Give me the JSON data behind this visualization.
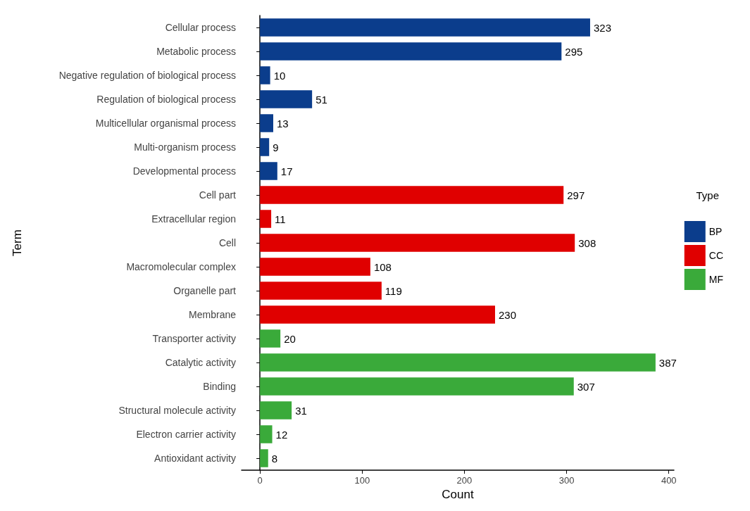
{
  "chart_data": {
    "type": "bar",
    "orientation": "horizontal",
    "stacked": true,
    "xlabel": "Count",
    "ylabel": "Term",
    "legend_title": "Type",
    "legend": "right",
    "grid": false,
    "data_labels": true,
    "categories": [
      "Cellular process",
      "Metabolic process",
      "Negative regulation of biological process",
      "Regulation of biological process",
      "Multicellular organismal process",
      "Multi-organism process",
      "Developmental process",
      "Cell part",
      "Extracellular region",
      "Cell",
      "Macromolecular complex",
      "Organelle part",
      "Membrane",
      "Transporter activity",
      "Catalytic activity",
      "Binding",
      "Structural molecule activity",
      "Electron carrier activity",
      "Antioxidant activity"
    ],
    "series": [
      {
        "name": "BP",
        "color": "#0b3d8c",
        "values": [
          323,
          295,
          10,
          51,
          13,
          9,
          17,
          null,
          null,
          null,
          null,
          null,
          null,
          null,
          null,
          null,
          null,
          null,
          null
        ]
      },
      {
        "name": "CC",
        "color": "#e00000",
        "values": [
          null,
          null,
          null,
          null,
          null,
          null,
          null,
          297,
          11,
          308,
          108,
          119,
          230,
          null,
          null,
          null,
          null,
          null,
          null
        ]
      },
      {
        "name": "MF",
        "color": "#3aaa3a",
        "values": [
          null,
          null,
          null,
          null,
          null,
          null,
          null,
          null,
          null,
          null,
          null,
          null,
          null,
          20,
          387,
          307,
          31,
          12,
          8
        ]
      }
    ],
    "xlim": [
      -18,
      405
    ],
    "xticks": [
      0,
      100,
      200,
      300,
      400
    ]
  }
}
